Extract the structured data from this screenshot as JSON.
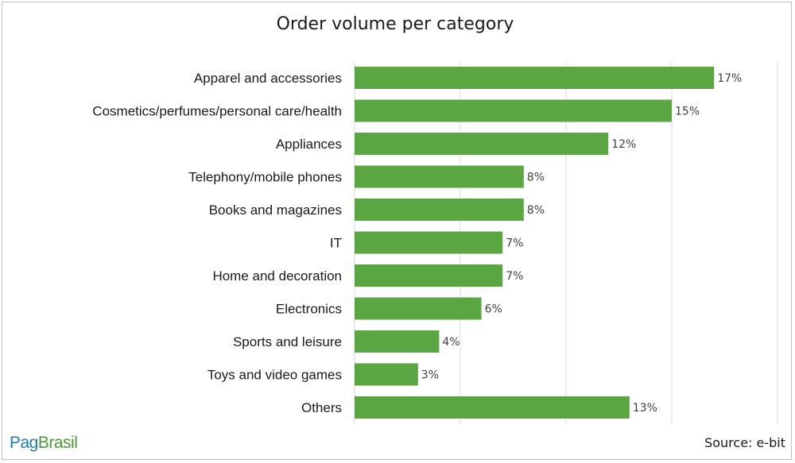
{
  "chart_data": {
    "type": "bar",
    "orientation": "horizontal",
    "title": "Order volume per category",
    "categories": [
      "Apparel and accessories",
      "Cosmetics/perfumes/personal care/health",
      "Appliances",
      "Telephony/mobile phones",
      "Books and magazines",
      "IT",
      "Home and decoration",
      "Electronics",
      "Sports and leisure",
      "Toys and video games",
      "Others"
    ],
    "values": [
      17,
      15,
      12,
      8,
      8,
      7,
      7,
      6,
      4,
      3,
      13
    ],
    "value_labels": [
      "17%",
      "15%",
      "12%",
      "8%",
      "8%",
      "7%",
      "7%",
      "6%",
      "4%",
      "3%",
      "13%"
    ],
    "xlim": [
      0,
      20
    ],
    "grid": true,
    "bar_color": "#5aa642",
    "gridline_color": "#d9d9d9"
  },
  "branding": {
    "logo_part1": "Pag",
    "logo_part2": "Brasil",
    "logo_color_1": "#1e7fa8",
    "logo_color_2": "#4a9a3a"
  },
  "source": "Source: e-bit"
}
